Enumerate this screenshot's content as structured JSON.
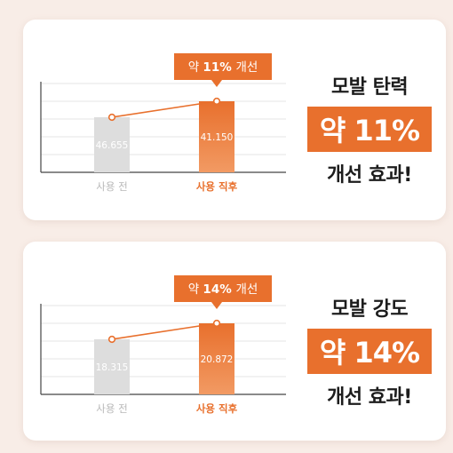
{
  "colors": {
    "accent": "#e8702d",
    "accent_light": "#f29a63",
    "bar_before": "#dddddd",
    "line": "#e8702d",
    "bg": "#f8ede7"
  },
  "chart_data": [
    {
      "type": "bar",
      "categories": [
        "사용 전",
        "사용 직후"
      ],
      "values": [
        46.655,
        41.15
      ],
      "value_labels": [
        "46.655",
        "41.150"
      ],
      "callout": "약 11% 개선",
      "grid": true,
      "side_headline": "모발 탄력",
      "side_percent": "약 11%",
      "side_effect": "개선 효과!"
    },
    {
      "type": "bar",
      "categories": [
        "사용 전",
        "사용 직후"
      ],
      "values": [
        18.315,
        20.872
      ],
      "value_labels": [
        "18.315",
        "20.872"
      ],
      "callout": "약 14% 개선",
      "grid": true,
      "side_headline": "모발 강도",
      "side_percent": "약 14%",
      "side_effect": "개선 효과!"
    }
  ]
}
